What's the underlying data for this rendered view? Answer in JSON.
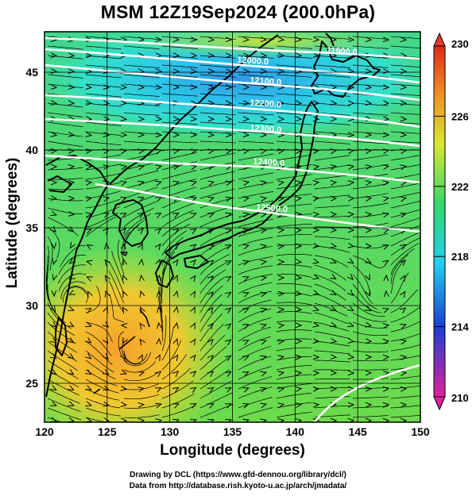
{
  "title": "MSM 12Z19Sep2024 (200.0hPa)",
  "xlabel": "Longitude (degrees)",
  "ylabel": "Latitude  (degrees)",
  "credits": {
    "line1": "Drawing by DCL (https://www.gfd-dennou.org/library/dcl/)",
    "line2": "Data from http://database.rish.kyoto-u.ac.jp/arch/jmadata/"
  },
  "map": {
    "lon_range": [
      120,
      150
    ],
    "lat_range": [
      22.5,
      47.6
    ],
    "lon_ticks": [
      "120",
      "125",
      "130",
      "135",
      "140",
      "145",
      "150"
    ],
    "lat_ticks": [
      "25",
      "30",
      "35",
      "40",
      "45"
    ],
    "contour_labels": [
      "11900.0",
      "12000.0",
      "12100.0",
      "12200.0",
      "12300.0",
      "12400.0",
      "12500.0"
    ],
    "shading_variable_range": [
      210,
      230
    ]
  },
  "colorbar": {
    "max_label": "230",
    "min_label": "210",
    "tick_labels": [
      "226",
      "222",
      "218",
      "214"
    ],
    "colors": [
      "#e0209c",
      "#1a3fd4",
      "#20d0f0",
      "#34d86a",
      "#d9e830",
      "#f08a20",
      "#e02818"
    ]
  }
}
